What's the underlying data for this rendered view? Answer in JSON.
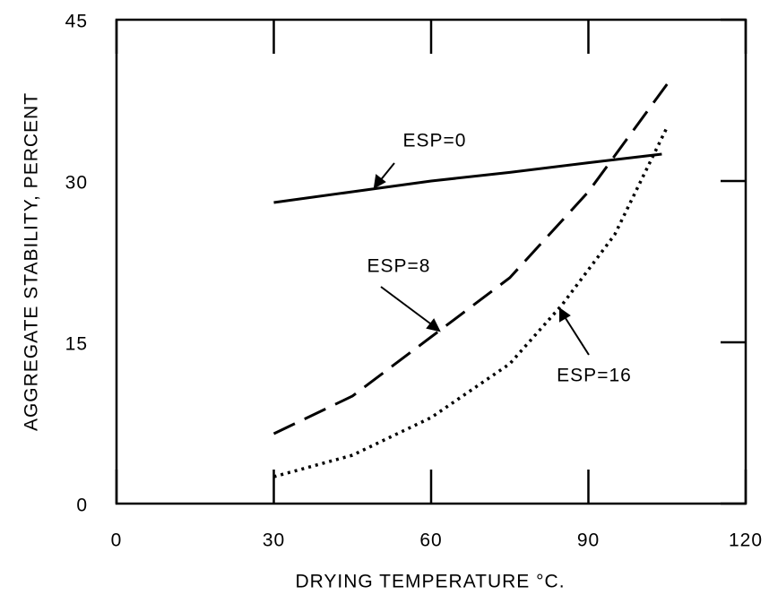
{
  "chart_data": {
    "type": "line",
    "xlabel": "DRYING TEMPERATURE  °C.",
    "ylabel": "AGGREGATE STABILITY, PERCENT",
    "xlim": [
      0,
      120
    ],
    "xticks": [
      0,
      30,
      60,
      90,
      120
    ],
    "ylim": [
      0,
      45
    ],
    "yticks": [
      0,
      15,
      30,
      45
    ],
    "series": [
      {
        "name": "ESP=0",
        "color": "#000000",
        "style": "solid",
        "x": [
          30,
          45,
          60,
          75,
          90,
          104
        ],
        "values": [
          28,
          29,
          30,
          30.8,
          31.7,
          32.5
        ]
      },
      {
        "name": "ESP=8",
        "color": "#000000",
        "style": "dashed",
        "x": [
          30,
          45,
          60,
          75,
          90,
          105
        ],
        "values": [
          6.5,
          10,
          15.5,
          21,
          29,
          39
        ]
      },
      {
        "name": "ESP=16",
        "color": "#000000",
        "style": "dotted",
        "x": [
          30,
          45,
          60,
          75,
          85,
          95,
          105
        ],
        "values": [
          2.5,
          4.5,
          8,
          13,
          18.5,
          25,
          35
        ]
      }
    ]
  }
}
